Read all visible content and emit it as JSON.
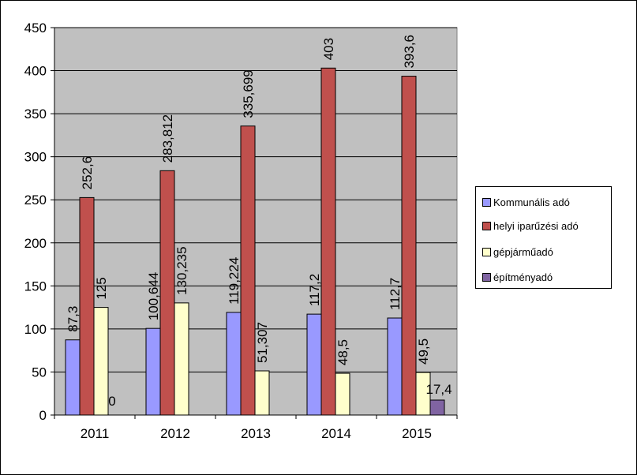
{
  "chart_data": {
    "type": "bar",
    "categories": [
      "2011",
      "2012",
      "2013",
      "2014",
      "2015"
    ],
    "series": [
      {
        "name": "Kommunális adó",
        "color": "#9999ff",
        "values": [
          87.3,
          100.644,
          119.224,
          117.2,
          112.7
        ],
        "labels": [
          "87,3",
          "100,644",
          "119,224",
          "117,2",
          "112,7"
        ]
      },
      {
        "name": "helyi iparűzési  adó",
        "color": "#c0504d",
        "values": [
          252.6,
          283.812,
          335.699,
          403,
          393.6
        ],
        "labels": [
          "252,6",
          "283,812",
          "335,699",
          "403",
          "393,6"
        ]
      },
      {
        "name": "gépjárműadó",
        "color": "#ffffcc",
        "values": [
          125,
          130.235,
          51.307,
          48.5,
          49.5
        ],
        "labels": [
          "125",
          "130,235",
          "51,307",
          "48,5",
          "49,5"
        ]
      },
      {
        "name": "építményadó",
        "color": "#8064a2",
        "values": [
          0,
          null,
          null,
          null,
          17.4
        ],
        "labels": [
          "0",
          "",
          "",
          "",
          "17,4"
        ]
      }
    ],
    "ylim": [
      0,
      450
    ],
    "yticks": [
      "0",
      "50",
      "100",
      "150",
      "200",
      "250",
      "300",
      "350",
      "400",
      "450"
    ],
    "grid": true,
    "plot_background": "#c0c0c0",
    "legend": "right"
  }
}
